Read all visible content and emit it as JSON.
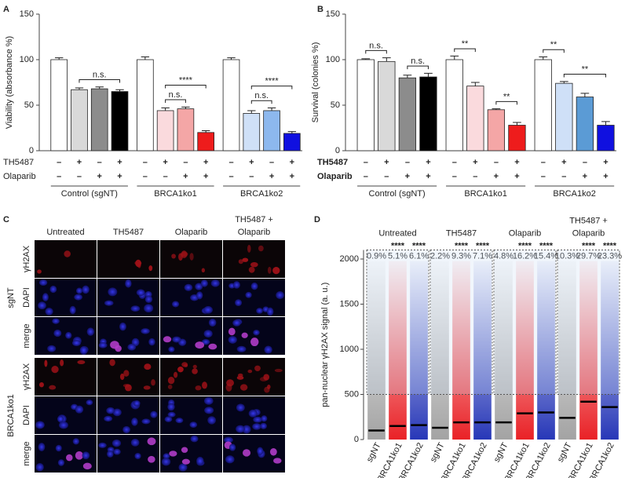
{
  "chart_data": [
    {
      "type": "bar",
      "panel": "A",
      "y_label": "Viability (absorbance %)",
      "ylim": [
        0,
        150
      ],
      "yticks": [
        0,
        50,
        100,
        150
      ],
      "values": [
        100,
        67,
        68,
        65,
        100,
        44,
        46,
        20,
        100,
        41,
        44,
        19
      ],
      "errors": [
        2,
        2,
        2,
        2,
        3,
        3,
        2,
        2,
        2,
        3,
        3,
        2
      ],
      "colors": [
        "#ffffff",
        "#d9d9d9",
        "#8c8c8c",
        "#000000",
        "#ffffff",
        "#fadadd",
        "#f4a6a6",
        "#ee1c1c",
        "#ffffff",
        "#cfe0f7",
        "#8db8ee",
        "#1010e0"
      ],
      "rows": [
        {
          "label": "TH5487",
          "signs": [
            "–",
            "+",
            "–",
            "+",
            "–",
            "+",
            "–",
            "+",
            "–",
            "+",
            "–",
            "+"
          ]
        },
        {
          "label": "Olaparib",
          "signs": [
            "–",
            "–",
            "+",
            "+",
            "–",
            "–",
            "+",
            "+",
            "–",
            "–",
            "+",
            "+"
          ]
        }
      ],
      "groups": [
        "Control (sgNT)",
        "BRCA1ko1",
        "BRCA1ko2"
      ],
      "annotations": [
        {
          "text": "n.s.",
          "bars": [
            1,
            3
          ]
        },
        {
          "text": "n.s.",
          "bars": [
            5,
            6
          ]
        },
        {
          "text": "****",
          "bars": [
            5,
            7
          ]
        },
        {
          "text": "n.s.",
          "bars": [
            9,
            10
          ]
        },
        {
          "text": "****",
          "bars": [
            9,
            11
          ]
        }
      ]
    },
    {
      "type": "bar",
      "panel": "B",
      "y_label": "Survival (colonies %)",
      "ylim": [
        0,
        150
      ],
      "yticks": [
        0,
        50,
        100,
        150
      ],
      "values": [
        100,
        98,
        80,
        81,
        100,
        71,
        45,
        28,
        100,
        74,
        59,
        28
      ],
      "errors": [
        1,
        4,
        3,
        4,
        4,
        4,
        1,
        3,
        3,
        2,
        4,
        4
      ],
      "colors": [
        "#ffffff",
        "#d9d9d9",
        "#8c8c8c",
        "#000000",
        "#ffffff",
        "#fadadd",
        "#f4a6a6",
        "#ee1c1c",
        "#ffffff",
        "#cfe0f7",
        "#5b9bd5",
        "#1010e0"
      ],
      "rows": [
        {
          "label": "TH5487",
          "signs": [
            "–",
            "+",
            "–",
            "+",
            "–",
            "+",
            "–",
            "+",
            "–",
            "+",
            "–",
            "+"
          ]
        },
        {
          "label": "Olaparib",
          "signs": [
            "–",
            "–",
            "+",
            "+",
            "–",
            "–",
            "+",
            "+",
            "–",
            "–",
            "+",
            "+"
          ]
        }
      ],
      "groups": [
        "Control (sgNT)",
        "BRCA1ko1",
        "BRCA1ko2"
      ],
      "annotations": [
        {
          "text": "n.s.",
          "bars": [
            0,
            1
          ]
        },
        {
          "text": "n.s.",
          "bars": [
            2,
            3
          ]
        },
        {
          "text": "**",
          "bars": [
            4,
            5
          ]
        },
        {
          "text": "**",
          "bars": [
            6,
            7
          ]
        },
        {
          "text": "**",
          "bars": [
            8,
            9
          ]
        },
        {
          "text": "**",
          "bars": [
            9,
            11
          ]
        }
      ]
    },
    {
      "type": "image-grid",
      "panel": "C",
      "columns": [
        {
          "lines": [
            "Untreated"
          ]
        },
        {
          "lines": [
            "TH5487"
          ]
        },
        {
          "lines": [
            "Olaparib"
          ]
        },
        {
          "lines": [
            "TH5487 +",
            "Olaparib"
          ]
        }
      ],
      "row_groups": [
        {
          "label": "sgNT",
          "channels": [
            "γH2AX",
            "DAPI",
            "merge"
          ]
        },
        {
          "label": "BRCA1ko1",
          "channels": [
            "γH2AX",
            "DAPI",
            "merge"
          ]
        }
      ]
    },
    {
      "type": "swarm",
      "panel": "D",
      "y_label": "pan-nuclear γH2AX signal (a. u.)",
      "ylim": [
        0,
        2100
      ],
      "yticks": [
        0,
        500,
        1000,
        1500,
        2000
      ],
      "threshold": 500,
      "groups": [
        {
          "lines": [
            "Untreated"
          ]
        },
        {
          "lines": [
            "TH5487"
          ]
        },
        {
          "lines": [
            "Olaparib"
          ]
        },
        {
          "lines": [
            "TH5487 +",
            "Olaparib"
          ]
        }
      ],
      "categories": [
        "sgNT",
        "BRCA1ko1",
        "BRCA1ko2",
        "sgNT",
        "BRCA1ko1",
        "BRCA1ko2",
        "sgNT",
        "BRCA1ko1",
        "BRCA1ko2",
        "sgNT",
        "BRCA1ko1",
        "BRCA1ko2"
      ],
      "colors": [
        "#9e9e9e",
        "#e8161b",
        "#1c2db4",
        "#9e9e9e",
        "#e8161b",
        "#1c2db4",
        "#9e9e9e",
        "#e8161b",
        "#1c2db4",
        "#9e9e9e",
        "#e8161b",
        "#1c2db4"
      ],
      "medians": [
        100,
        150,
        160,
        130,
        190,
        190,
        190,
        290,
        300,
        240,
        420,
        360
      ],
      "percent_labels": [
        "0.9%",
        "5.1%",
        "6.1%",
        "2.2%",
        "9.3%",
        "7.1%",
        "4.8%",
        "16.2%",
        "15.4%",
        "10.3%",
        "29.7%",
        "23.3%"
      ],
      "significance": [
        null,
        "****",
        "****",
        null,
        "****",
        "****",
        null,
        "****",
        "****",
        null,
        "****",
        "****"
      ]
    }
  ]
}
